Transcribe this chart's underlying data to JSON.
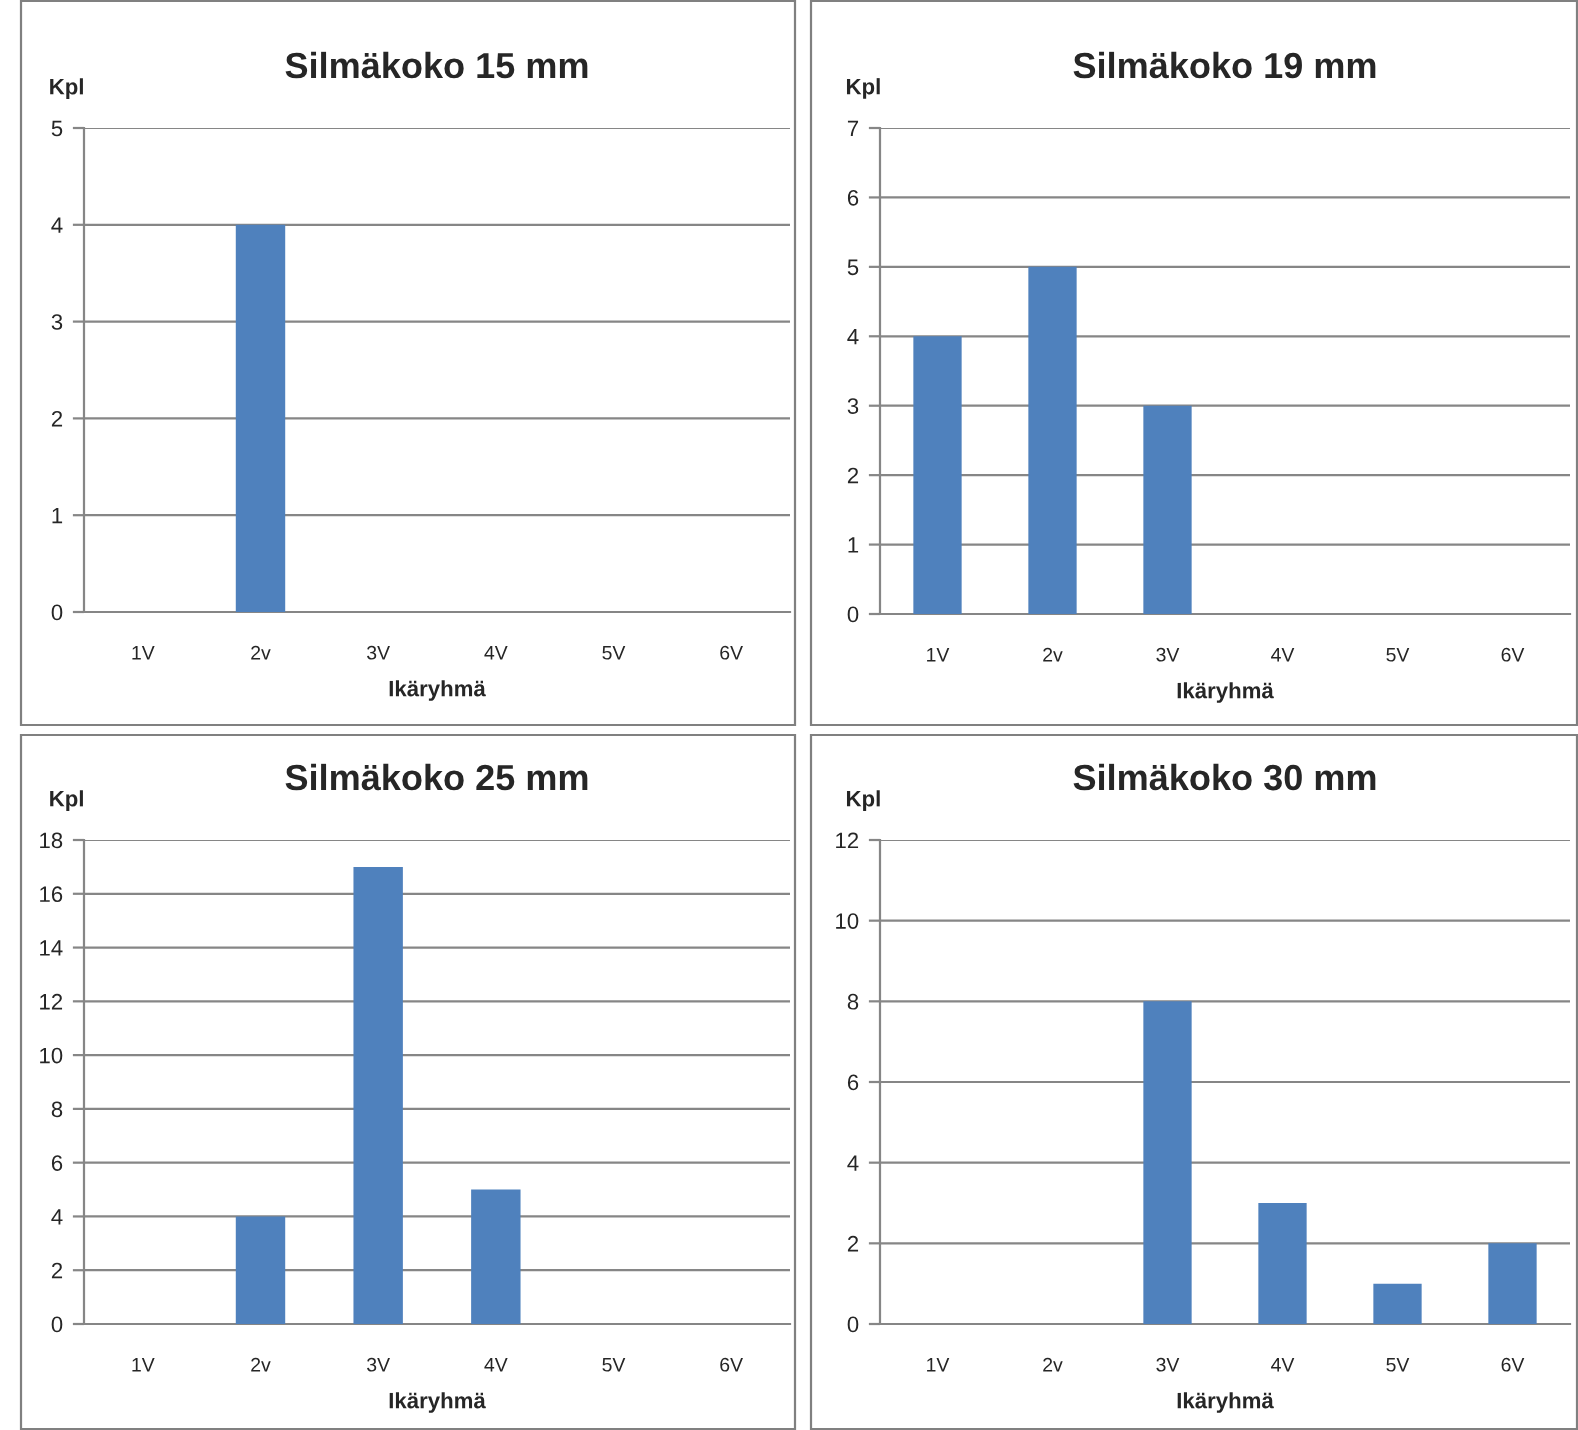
{
  "chart_data": [
    {
      "type": "bar",
      "title": "Silmäkoko 15 mm",
      "xlabel": "Ikäryhmä",
      "ylabel": "Kpl",
      "categories": [
        "1V",
        "2v",
        "3V",
        "4V",
        "5V",
        "6V"
      ],
      "values": [
        null,
        4,
        null,
        null,
        null,
        null
      ],
      "color": "#4f81bd",
      "ylim": [
        0,
        5
      ],
      "yticks": [
        0,
        1,
        2,
        3,
        4,
        5
      ],
      "grid": "y",
      "legend": false
    },
    {
      "type": "bar",
      "title": "Silmäkoko 19 mm",
      "xlabel": "Ikäryhmä",
      "ylabel": "Kpl",
      "categories": [
        "1V",
        "2v",
        "3V",
        "4V",
        "5V",
        "6V"
      ],
      "values": [
        4,
        5,
        3,
        null,
        null,
        null
      ],
      "color": "#4f81bd",
      "ylim": [
        0,
        7
      ],
      "yticks": [
        0,
        1,
        2,
        3,
        4,
        5,
        6,
        7
      ],
      "grid": "y",
      "legend": false
    },
    {
      "type": "bar",
      "title": "Silmäkoko 25 mm",
      "xlabel": "Ikäryhmä",
      "ylabel": "Kpl",
      "categories": [
        "1V",
        "2v",
        "3V",
        "4V",
        "5V",
        "6V"
      ],
      "values": [
        null,
        4,
        17,
        5,
        null,
        null
      ],
      "color": "#4f81bd",
      "ylim": [
        0,
        18
      ],
      "yticks": [
        0,
        2,
        4,
        6,
        8,
        10,
        12,
        14,
        16,
        18
      ],
      "grid": "y",
      "legend": false
    },
    {
      "type": "bar",
      "title": "Silmäkoko 30 mm",
      "xlabel": "Ikäryhmä",
      "ylabel": "Kpl",
      "categories": [
        "1V",
        "2v",
        "3V",
        "4V",
        "5V",
        "6V"
      ],
      "values": [
        null,
        null,
        8,
        3,
        1,
        2
      ],
      "color": "#4f81bd",
      "ylim": [
        0,
        12
      ],
      "yticks": [
        0,
        2,
        4,
        6,
        8,
        10,
        12
      ],
      "grid": "y",
      "legend": false
    }
  ]
}
